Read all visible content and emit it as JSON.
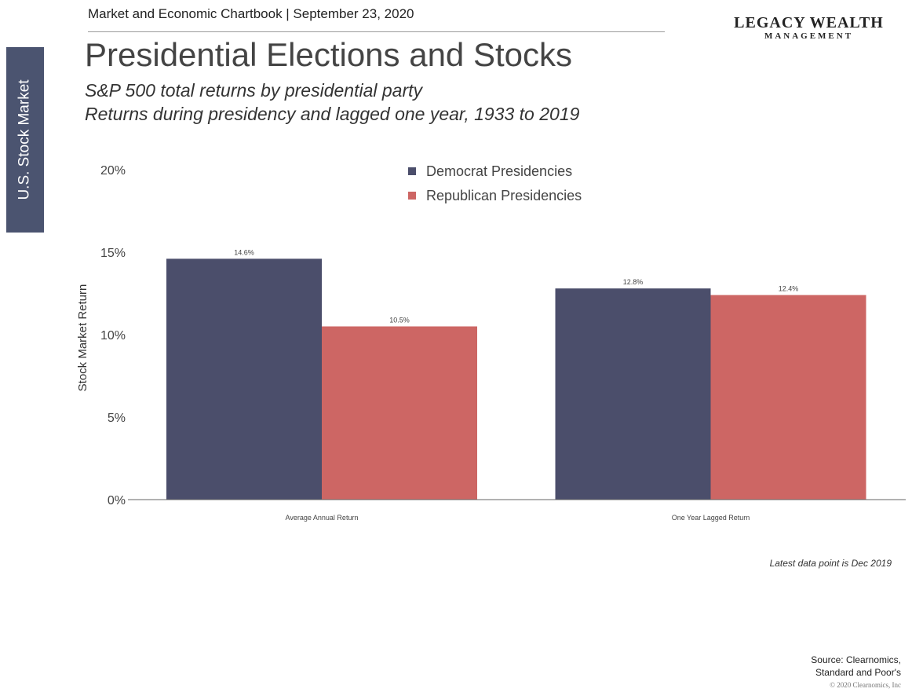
{
  "side_tab": "U.S. Stock Market",
  "header": "Market and Economic Chartbook | September 23, 2020",
  "logo": {
    "top": "LEGACY WEALTH",
    "bottom": "MANAGEMENT"
  },
  "title": "Presidential Elections and Stocks",
  "subtitle_1": "S&P 500 total returns by presidential party",
  "subtitle_2": "Returns during presidency and lagged one year, 1933 to 2019",
  "note": "Latest data point is Dec 2019",
  "source_1": "Source: Clearnomics,",
  "source_2": "Standard and Poor's",
  "copyright": "© 2020 Clearnomics, Inc",
  "chart_data": {
    "type": "bar",
    "categories": [
      "Average Annual Return",
      "One Year Lagged Return"
    ],
    "series": [
      {
        "name": "Democrat Presidencies",
        "values": [
          14.6,
          12.8
        ],
        "labels": [
          "14.6%",
          "12.8%"
        ],
        "color": "#4b4e6b"
      },
      {
        "name": "Republican Presidencies",
        "values": [
          10.5,
          12.4
        ],
        "labels": [
          "10.5%",
          "12.4%"
        ],
        "color": "#cd6664"
      }
    ],
    "ylabel": "Stock Market Return",
    "yticks": [
      0,
      5,
      10,
      15,
      20
    ],
    "ytick_labels": [
      "0%",
      "5%",
      "10%",
      "15%",
      "20%"
    ],
    "ylim": [
      0,
      20
    ],
    "grid": false,
    "legend_position": "top-center"
  }
}
